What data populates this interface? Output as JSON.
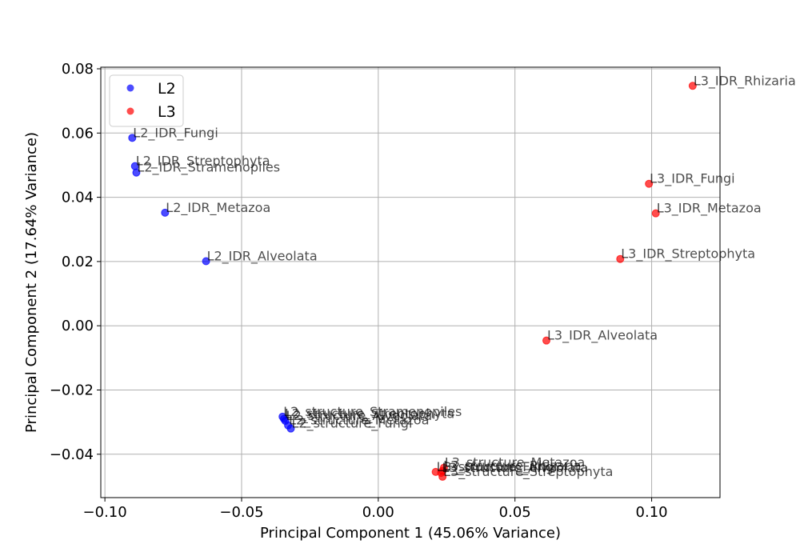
{
  "chart_data": {
    "type": "scatter",
    "title": "",
    "xlabel": "Principal Component 1 (45.06% Variance)",
    "ylabel": "Principal Component 2 (17.64% Variance)",
    "xlim": [
      -0.1015,
      0.125
    ],
    "ylim": [
      -0.0535,
      0.0805
    ],
    "xticks": [
      -0.1,
      -0.05,
      0.0,
      0.05,
      0.1
    ],
    "xtick_labels": [
      "−0.10",
      "−0.05",
      "0.00",
      "0.05",
      "0.10"
    ],
    "yticks": [
      -0.04,
      -0.02,
      0.0,
      0.02,
      0.04,
      0.06,
      0.08
    ],
    "ytick_labels": [
      "−0.04",
      "−0.02",
      "0.00",
      "0.02",
      "0.04",
      "0.06",
      "0.08"
    ],
    "grid": true,
    "legend_position": "top-left",
    "series": [
      {
        "name": "L2",
        "color": "#0000ff",
        "points": [
          {
            "label": "L2_IDR_Fungi",
            "x": -0.09,
            "y": 0.0585
          },
          {
            "label": "L2_IDR_Streptophyta",
            "x": -0.089,
            "y": 0.0497
          },
          {
            "label": "L2_IDR_Stramenopiles",
            "x": -0.0885,
            "y": 0.0477
          },
          {
            "label": "L2_IDR_Metazoa",
            "x": -0.078,
            "y": 0.0352
          },
          {
            "label": "L2_IDR_Alveolata",
            "x": -0.063,
            "y": 0.0201
          },
          {
            "label": "L2_structure_Stramenopiles",
            "x": -0.035,
            "y": -0.0283
          },
          {
            "label": "L2_structure_Streptophyta",
            "x": -0.0345,
            "y": -0.029
          },
          {
            "label": "L2_structure_Alveolata",
            "x": -0.034,
            "y": -0.0296
          },
          {
            "label": "L2_structure_Metazoa",
            "x": -0.033,
            "y": -0.031
          },
          {
            "label": "L2_structure_Fungi",
            "x": -0.032,
            "y": -0.032
          }
        ]
      },
      {
        "name": "L3",
        "color": "#ff0000",
        "points": [
          {
            "label": "L3_IDR_Rhizaria",
            "x": 0.115,
            "y": 0.0747
          },
          {
            "label": "L3_IDR_Fungi",
            "x": 0.099,
            "y": 0.0442
          },
          {
            "label": "L3_IDR_Metazoa",
            "x": 0.1015,
            "y": 0.035
          },
          {
            "label": "L3_IDR_Streptophyta",
            "x": 0.0885,
            "y": 0.0208
          },
          {
            "label": "L3_IDR_Alveolata",
            "x": 0.0615,
            "y": -0.0046
          },
          {
            "label": "L3_structure_Metazoa",
            "x": 0.024,
            "y": -0.0442
          },
          {
            "label": "L3_structure_Rhizaria",
            "x": 0.0235,
            "y": -0.0452
          },
          {
            "label": "L3_structure_Alveolata",
            "x": 0.023,
            "y": -0.0458
          },
          {
            "label": "L3_structure_Fungi",
            "x": 0.021,
            "y": -0.0455
          },
          {
            "label": "L3_structure_Streptophyta",
            "x": 0.0235,
            "y": -0.047
          }
        ]
      }
    ]
  }
}
